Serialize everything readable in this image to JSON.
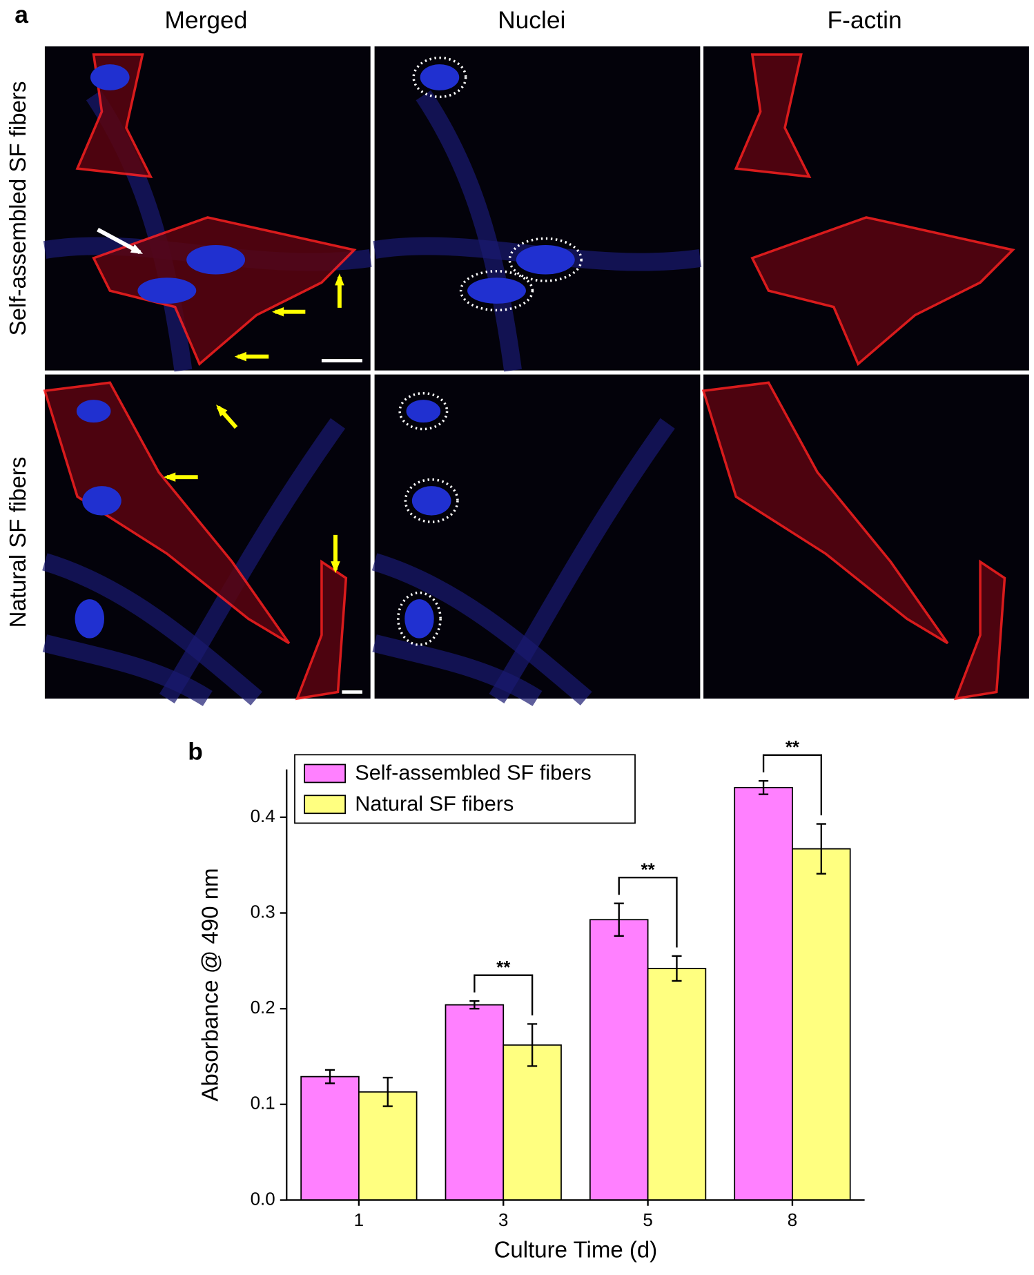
{
  "panel_a": {
    "label": "a",
    "columns": [
      "Merged",
      "Nuclei",
      "F-actin"
    ],
    "rows": [
      "Self-assembled SF fibers",
      "Natural SF fibers"
    ]
  },
  "chart_data": {
    "type": "bar",
    "panel_label": "b",
    "xlabel": "Culture Time (d)",
    "ylabel": "Absorbance @ 490 nm",
    "categories": [
      "1",
      "3",
      "5",
      "8"
    ],
    "series": [
      {
        "name": "Self-assembled SF fibers",
        "color": "#ff80ff",
        "values": [
          0.129,
          0.204,
          0.293,
          0.431
        ],
        "errors": [
          0.007,
          0.004,
          0.017,
          0.007
        ]
      },
      {
        "name": "Natural SF fibers",
        "color": "#ffff80",
        "values": [
          0.113,
          0.162,
          0.242,
          0.367
        ],
        "errors": [
          0.015,
          0.022,
          0.013,
          0.026
        ]
      }
    ],
    "ylim": [
      0,
      0.45
    ],
    "yticks": [
      {
        "value": 0,
        "label": "0.0"
      },
      0.1,
      0.2,
      0.3,
      0.4
    ],
    "legend": "upper left",
    "annotations": [
      "**",
      "**",
      "**"
    ]
  }
}
